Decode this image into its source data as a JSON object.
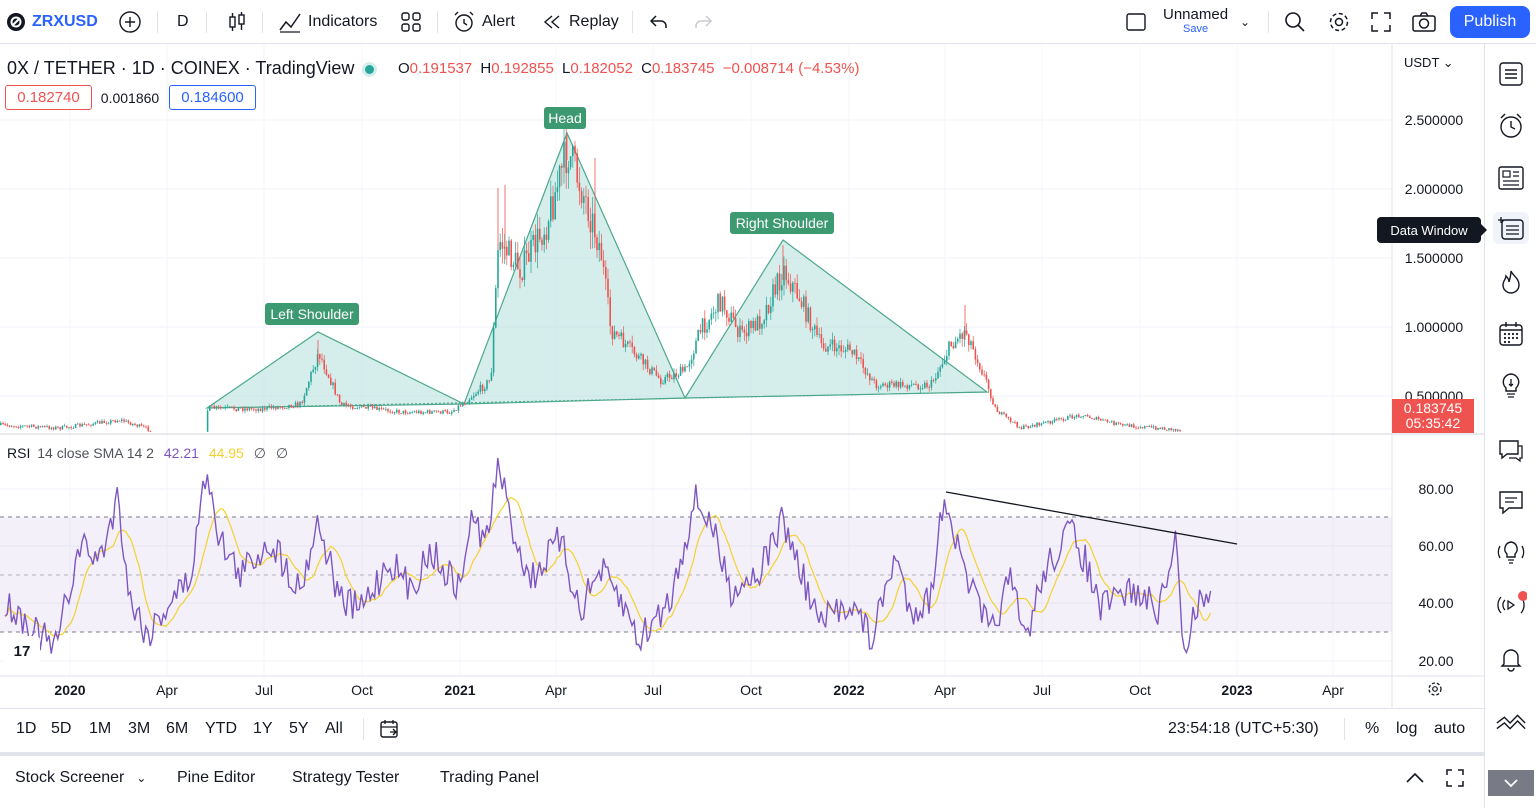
{
  "topbar": {
    "symbol": "ZRXUSD",
    "interval": "D",
    "indicators_label": "Indicators",
    "alert_label": "Alert",
    "replay_label": "Replay",
    "layout_name": "Unnamed",
    "layout_save": "Save",
    "publish_label": "Publish"
  },
  "legend": {
    "title": "0X / TETHER · 1D · COINEX · TradingView",
    "o_label": "O",
    "o_value": "0.191537",
    "h_label": "H",
    "h_value": "0.192855",
    "l_label": "L",
    "l_value": "0.182052",
    "c_label": "C",
    "c_value": "0.183745",
    "change": "−0.008714 (−4.53%)",
    "bid": "0.182740",
    "spread": "0.001860",
    "ask": "0.184600"
  },
  "price_axis": {
    "currency": "USDT",
    "ticks": [
      "2.500000",
      "2.000000",
      "1.500000",
      "1.000000",
      "0.500000"
    ],
    "last_price": "0.183745",
    "countdown": "05:35:42"
  },
  "rsi": {
    "label": "RSI",
    "params": "14 close SMA 14 2",
    "value": "42.21",
    "sma_value": "44.95",
    "extra1": "∅",
    "extra2": "∅",
    "ticks": [
      "80.00",
      "60.00",
      "40.00",
      "20.00"
    ]
  },
  "pattern_labels": {
    "left": "Left Shoulder",
    "head": "Head",
    "right": "Right Shoulder"
  },
  "time_axis": [
    "2020",
    "Apr",
    "Jul",
    "Oct",
    "2021",
    "Apr",
    "Jul",
    "Oct",
    "2022",
    "Apr",
    "Jul",
    "Oct",
    "2023",
    "Apr"
  ],
  "tooltip": "Data Window",
  "range_bar": {
    "ranges": [
      "1D",
      "5D",
      "1M",
      "3M",
      "6M",
      "YTD",
      "1Y",
      "5Y",
      "All"
    ],
    "clock": "23:54:18 (UTC+5:30)",
    "percent": "%",
    "log": "log",
    "auto": "auto"
  },
  "panels": [
    "Stock Screener",
    "Pine Editor",
    "Strategy Tester",
    "Trading Panel"
  ],
  "colors": {
    "accent": "#2962ff",
    "pattern_fill": "#b2dfdb",
    "pattern_line": "#4ca88c",
    "label_bg": "#3d9970",
    "rsi_line": "#7e57c2",
    "rsi_sma": "#f5d12e",
    "down": "#ef5350",
    "up": "#26a69a"
  },
  "icons": [
    "menu-icon",
    "alarm-icon",
    "news-icon",
    "data-window-icon",
    "hotlist-icon",
    "calendar-icon",
    "ideas-icon",
    "chat-icon",
    "messages-icon",
    "streams-icon",
    "broadcast-icon",
    "bell-icon",
    "chart-icon"
  ]
}
